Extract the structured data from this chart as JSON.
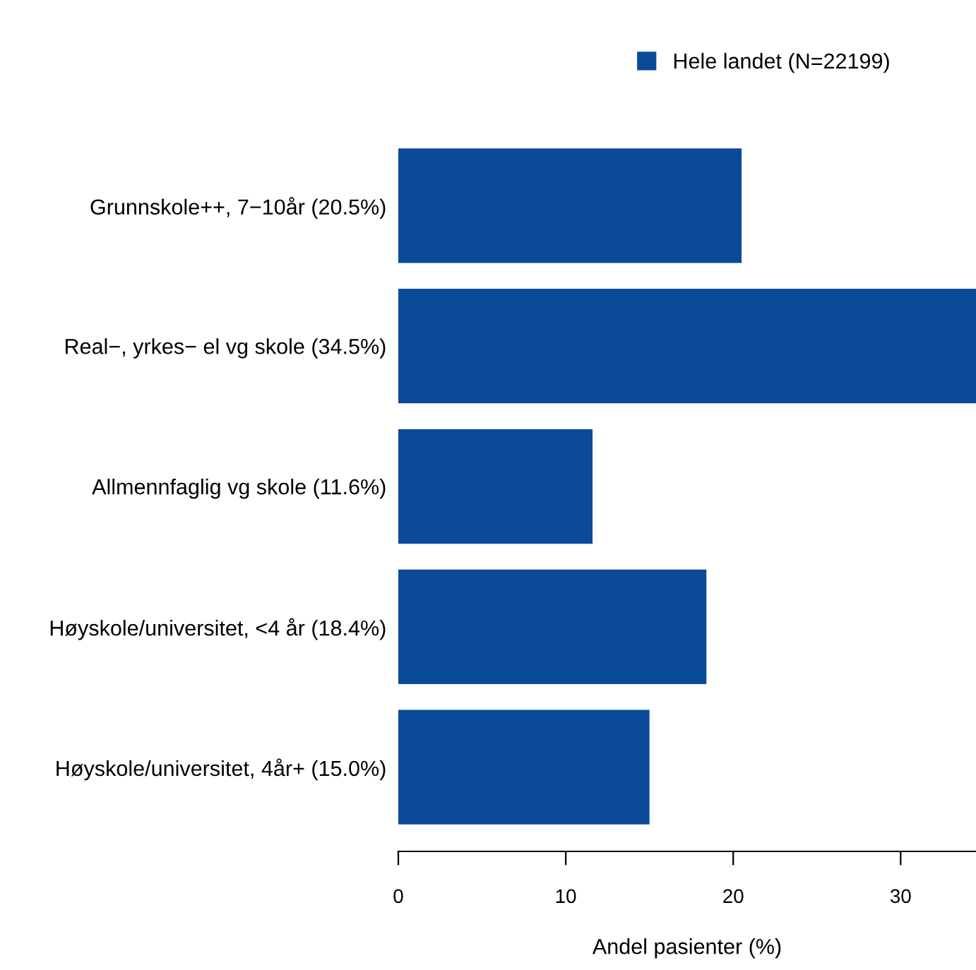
{
  "chart_data": {
    "type": "bar",
    "orientation": "horizontal",
    "categories": [
      "Grunnskole++, 7−10år (20.5%)",
      "Real−, yrkes− el vg skole (34.5%)",
      "Allmennfaglig vg skole (11.6%)",
      "Høyskole/universitet, <4 år (18.4%)",
      "Høyskole/universitet, 4år+ (15.0%)"
    ],
    "series": [
      {
        "name": "Hele landet (N=22199)",
        "color": "#0b4a98",
        "values": [
          20.5,
          34.5,
          11.6,
          18.4,
          15.0
        ]
      }
    ],
    "xlabel": "Andel pasienter (%)",
    "xlim": [
      0,
      34.5
    ],
    "xticks": [
      0,
      10,
      20,
      30
    ],
    "grid": false,
    "legend": "top right"
  }
}
